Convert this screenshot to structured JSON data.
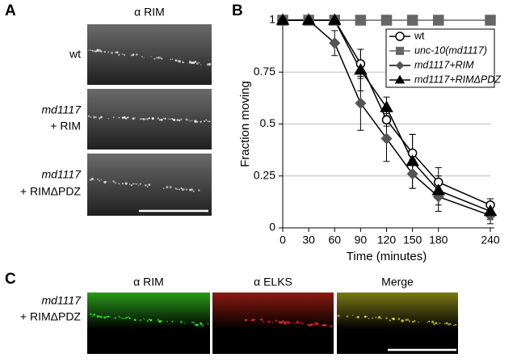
{
  "panel_a": {
    "label": "A",
    "title": "α RIM",
    "rows": [
      [
        "wt"
      ],
      [
        "md1117",
        "+ RIM"
      ],
      [
        "md1117",
        "+ RIMΔPDZ"
      ]
    ]
  },
  "panel_b": {
    "label": "B"
  },
  "panel_c": {
    "label": "C",
    "columns": [
      "α RIM",
      "α ELKS",
      "Merge"
    ],
    "row": [
      "md1117",
      "+ RIMΔPDZ"
    ]
  },
  "chart_data": {
    "type": "line",
    "xlabel": "Time (minutes)",
    "ylabel": "Fraction moving",
    "x": [
      0,
      30,
      60,
      90,
      120,
      150,
      180,
      240
    ],
    "xlim": [
      0,
      240
    ],
    "xticks": [
      0,
      30,
      60,
      90,
      120,
      150,
      180,
      240
    ],
    "ylim": [
      0,
      1
    ],
    "yticks": [
      0,
      0.25,
      0.5,
      0.75,
      1
    ],
    "grid": true,
    "legend": "upper right",
    "series": [
      {
        "name": "wt",
        "color": "#000000",
        "marker": "circle-open",
        "values": [
          1,
          1,
          1,
          0.79,
          0.52,
          0.36,
          0.22,
          0.11
        ],
        "errors": [
          null,
          null,
          null,
          0.07,
          0.03,
          0.09,
          0.07,
          0.03
        ]
      },
      {
        "name": "unc-10(md1117)",
        "color": "#666666",
        "marker": "square",
        "values": [
          1,
          1,
          1,
          1,
          1,
          1,
          1,
          1
        ]
      },
      {
        "name": "md1117+RIM",
        "color": "#555555",
        "marker": "diamond",
        "values": [
          1,
          1,
          0.89,
          0.6,
          0.43,
          0.26,
          0.15,
          0.06
        ],
        "errors": [
          null,
          null,
          0.06,
          0.13,
          0.11,
          0.07,
          0.07,
          0.04
        ]
      },
      {
        "name": "md1117+RIMΔPDZ",
        "color": "#000000",
        "marker": "triangle",
        "values": [
          1,
          1,
          1,
          0.76,
          0.58,
          0.32,
          0.18,
          0.08
        ],
        "errors": [
          null,
          null,
          null,
          0.1,
          0.05,
          0.13,
          0.07,
          0.04
        ]
      }
    ]
  }
}
